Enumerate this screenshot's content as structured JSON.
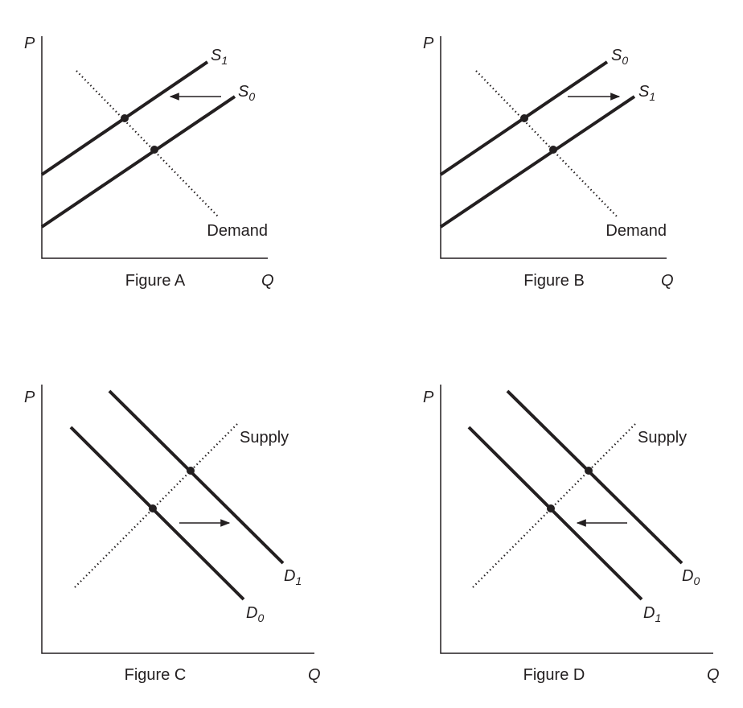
{
  "figures": [
    {
      "title": "Figure A",
      "p_axis": "P",
      "q_axis": "Q",
      "curves": [
        {
          "letter": "S",
          "sub": "1"
        },
        {
          "letter": "S",
          "sub": "0"
        }
      ],
      "other_curve": "Demand"
    },
    {
      "title": "Figure B",
      "p_axis": "P",
      "q_axis": "Q",
      "curves": [
        {
          "letter": "S",
          "sub": "0"
        },
        {
          "letter": "S",
          "sub": "1"
        }
      ],
      "other_curve": "Demand"
    },
    {
      "title": "Figure C",
      "p_axis": "P",
      "q_axis": "Q",
      "curves": [
        {
          "letter": "D",
          "sub": "1"
        },
        {
          "letter": "D",
          "sub": "0"
        }
      ],
      "other_curve": "Supply"
    },
    {
      "title": "Figure D",
      "p_axis": "P",
      "q_axis": "Q",
      "curves": [
        {
          "letter": "D",
          "sub": "0"
        },
        {
          "letter": "D",
          "sub": "1"
        }
      ],
      "other_curve": "Supply"
    }
  ]
}
